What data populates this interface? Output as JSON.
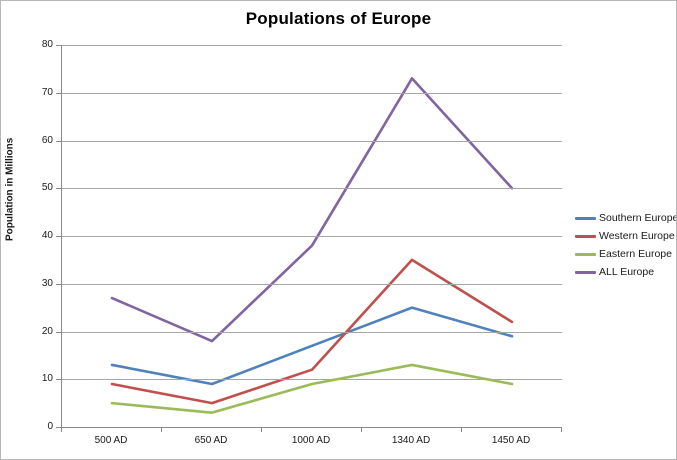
{
  "title": "Populations of Europe",
  "chart_data": {
    "type": "line",
    "title": "Populations of Europe",
    "xlabel": "",
    "ylabel": "Population in Millions",
    "categories": [
      "500 AD",
      "650 AD",
      "1000 AD",
      "1340 AD",
      "1450 AD"
    ],
    "series": [
      {
        "name": "Southern Europe",
        "color": "#4F81BD",
        "values": [
          13,
          9,
          17,
          25,
          19
        ]
      },
      {
        "name": "Western Europe",
        "color": "#C0504D",
        "values": [
          9,
          5,
          12,
          35,
          22
        ]
      },
      {
        "name": "Eastern Europe",
        "color": "#9BBB59",
        "values": [
          5,
          3,
          9,
          13,
          9
        ]
      },
      {
        "name": "ALL Europe",
        "color": "#8064A2",
        "values": [
          27,
          18,
          38,
          73,
          50
        ]
      }
    ],
    "ylim": [
      0,
      80
    ],
    "ytick_step": 10,
    "grid": true,
    "legend_position": "right",
    "colors": {
      "gridline": "#a6a6a6",
      "axis": "#898989",
      "text": "#1a1a1a",
      "background": "#ffffff",
      "border": "#b7b7b7"
    }
  }
}
